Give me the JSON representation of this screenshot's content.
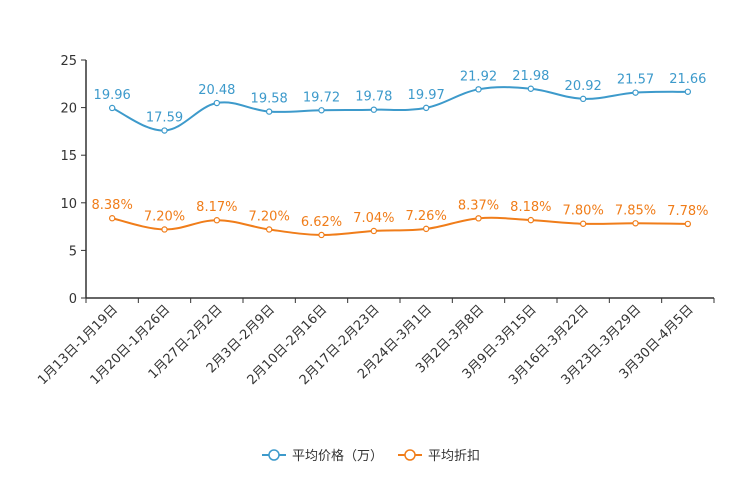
{
  "chart_data": {
    "type": "line",
    "title": "",
    "xlabel": "",
    "ylabel": "",
    "ylim": [
      0,
      25
    ],
    "yticks": [
      0,
      5,
      10,
      15,
      20,
      25
    ],
    "categories": [
      "1月13日-1月19日",
      "1月20日-1月26日",
      "1月27日-2月2日",
      "2月3日-2月9日",
      "2月10日-2月16日",
      "2月17日-2月23日",
      "2月24日-3月1日",
      "3月2日-3月8日",
      "3月9日-3月15日",
      "3月16日-3月22日",
      "3月23日-3月29日",
      "3月30日-4月5日"
    ],
    "series": [
      {
        "name": "平均价格（万）",
        "color": "#3d9acb",
        "values": [
          19.96,
          17.59,
          20.48,
          19.58,
          19.72,
          19.78,
          19.97,
          21.92,
          21.98,
          20.92,
          21.57,
          21.66
        ],
        "labels": [
          "19.96",
          "17.59",
          "20.48",
          "19.58",
          "19.72",
          "19.78",
          "19.97",
          "21.92",
          "21.98",
          "20.92",
          "21.57",
          "21.66"
        ]
      },
      {
        "name": "平均折扣",
        "color": "#f07d1a",
        "values": [
          8.38,
          7.2,
          8.17,
          7.2,
          6.62,
          7.04,
          7.26,
          8.37,
          8.18,
          7.8,
          7.85,
          7.78
        ],
        "labels": [
          "8.38%",
          "7.20%",
          "8.17%",
          "7.20%",
          "6.62%",
          "7.04%",
          "7.26%",
          "8.37%",
          "8.18%",
          "7.80%",
          "7.85%",
          "7.78%"
        ]
      }
    ],
    "legend_position": "bottom-center"
  }
}
